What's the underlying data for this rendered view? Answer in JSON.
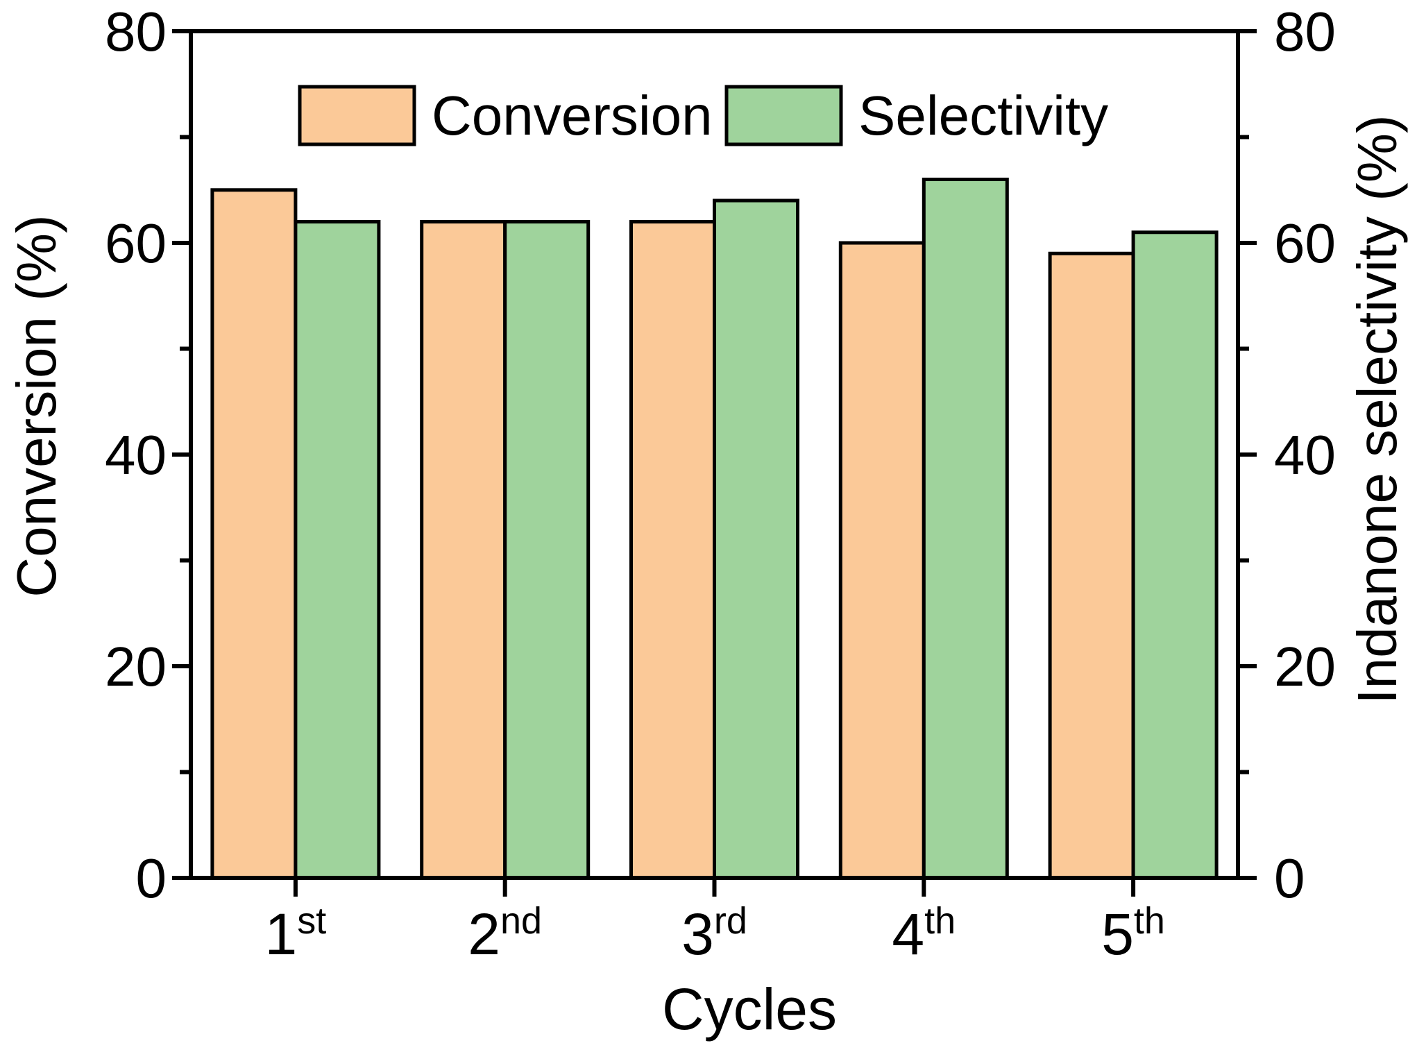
{
  "chart_data": {
    "type": "bar",
    "title": "",
    "xlabel": "Cycles",
    "ylabel_left": "Conversion (%)",
    "ylabel_right": "Indanone selectivity (%)",
    "ylim": [
      0,
      80
    ],
    "y_major_ticks": [
      0,
      20,
      40,
      60,
      80
    ],
    "y_minor_ticks": [
      10,
      30,
      50,
      70
    ],
    "grid": false,
    "legend_position": "top-center-inside",
    "categories": [
      {
        "base": "1",
        "sup": "st"
      },
      {
        "base": "2",
        "sup": "nd"
      },
      {
        "base": "3",
        "sup": "rd"
      },
      {
        "base": "4",
        "sup": "th"
      },
      {
        "base": "5",
        "sup": "th"
      }
    ],
    "series": [
      {
        "name": "Conversion",
        "color": "#FBC998",
        "edge_color": "#000000",
        "values": [
          65,
          62,
          62,
          60,
          59
        ]
      },
      {
        "name": "Selectivity",
        "color": "#9FD39C",
        "edge_color": "#000000",
        "values": [
          62,
          62,
          64,
          66,
          61
        ]
      }
    ]
  }
}
